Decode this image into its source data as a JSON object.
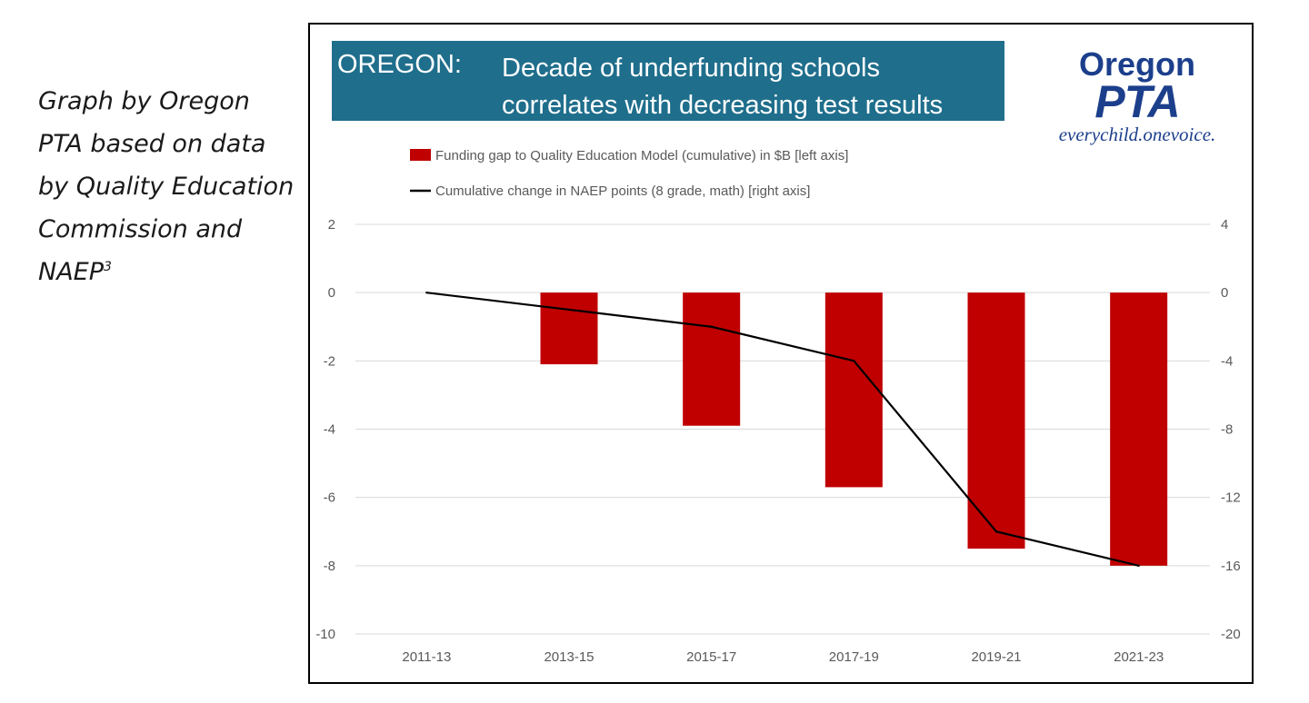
{
  "caption": {
    "lines": [
      "Graph by Oregon",
      "PTA based on data",
      "by Quality Education",
      "Commission and"
    ],
    "last_line": "NAEP",
    "footnote": "3"
  },
  "banner": {
    "state": "OREGON:",
    "headline_line1": "Decade of underfunding schools",
    "headline_line2": "correlates with decreasing test results"
  },
  "logo": {
    "line1": "Oregon",
    "line2": "PTA",
    "line3": "everychild.onevoice."
  },
  "chart_data": {
    "type": "bar",
    "categories": [
      "2011-13",
      "2013-15",
      "2015-17",
      "2017-19",
      "2019-21",
      "2021-23"
    ],
    "series": [
      {
        "name": "Funding gap to Quality Education Model (cumulative) in $B [left axis]",
        "type": "bar",
        "axis": "left",
        "color": "#c00000",
        "values": [
          0,
          -2.1,
          -3.9,
          -5.7,
          -7.5,
          -8.0
        ]
      },
      {
        "name": "Cumulative change in NAEP points (8 grade, math) [right axis]",
        "type": "line",
        "axis": "right",
        "color": "#000000",
        "values": [
          0,
          -1,
          -2,
          -4,
          -14,
          -16
        ]
      }
    ],
    "left_axis": {
      "ylim": [
        -10,
        2
      ],
      "ticks": [
        2,
        0,
        -2,
        -4,
        -6,
        -8,
        -10
      ]
    },
    "right_axis": {
      "ylim": [
        -20,
        4
      ],
      "ticks": [
        4,
        0,
        -4,
        -8,
        -12,
        -16,
        -20
      ]
    },
    "grid": true,
    "legend": "top"
  }
}
